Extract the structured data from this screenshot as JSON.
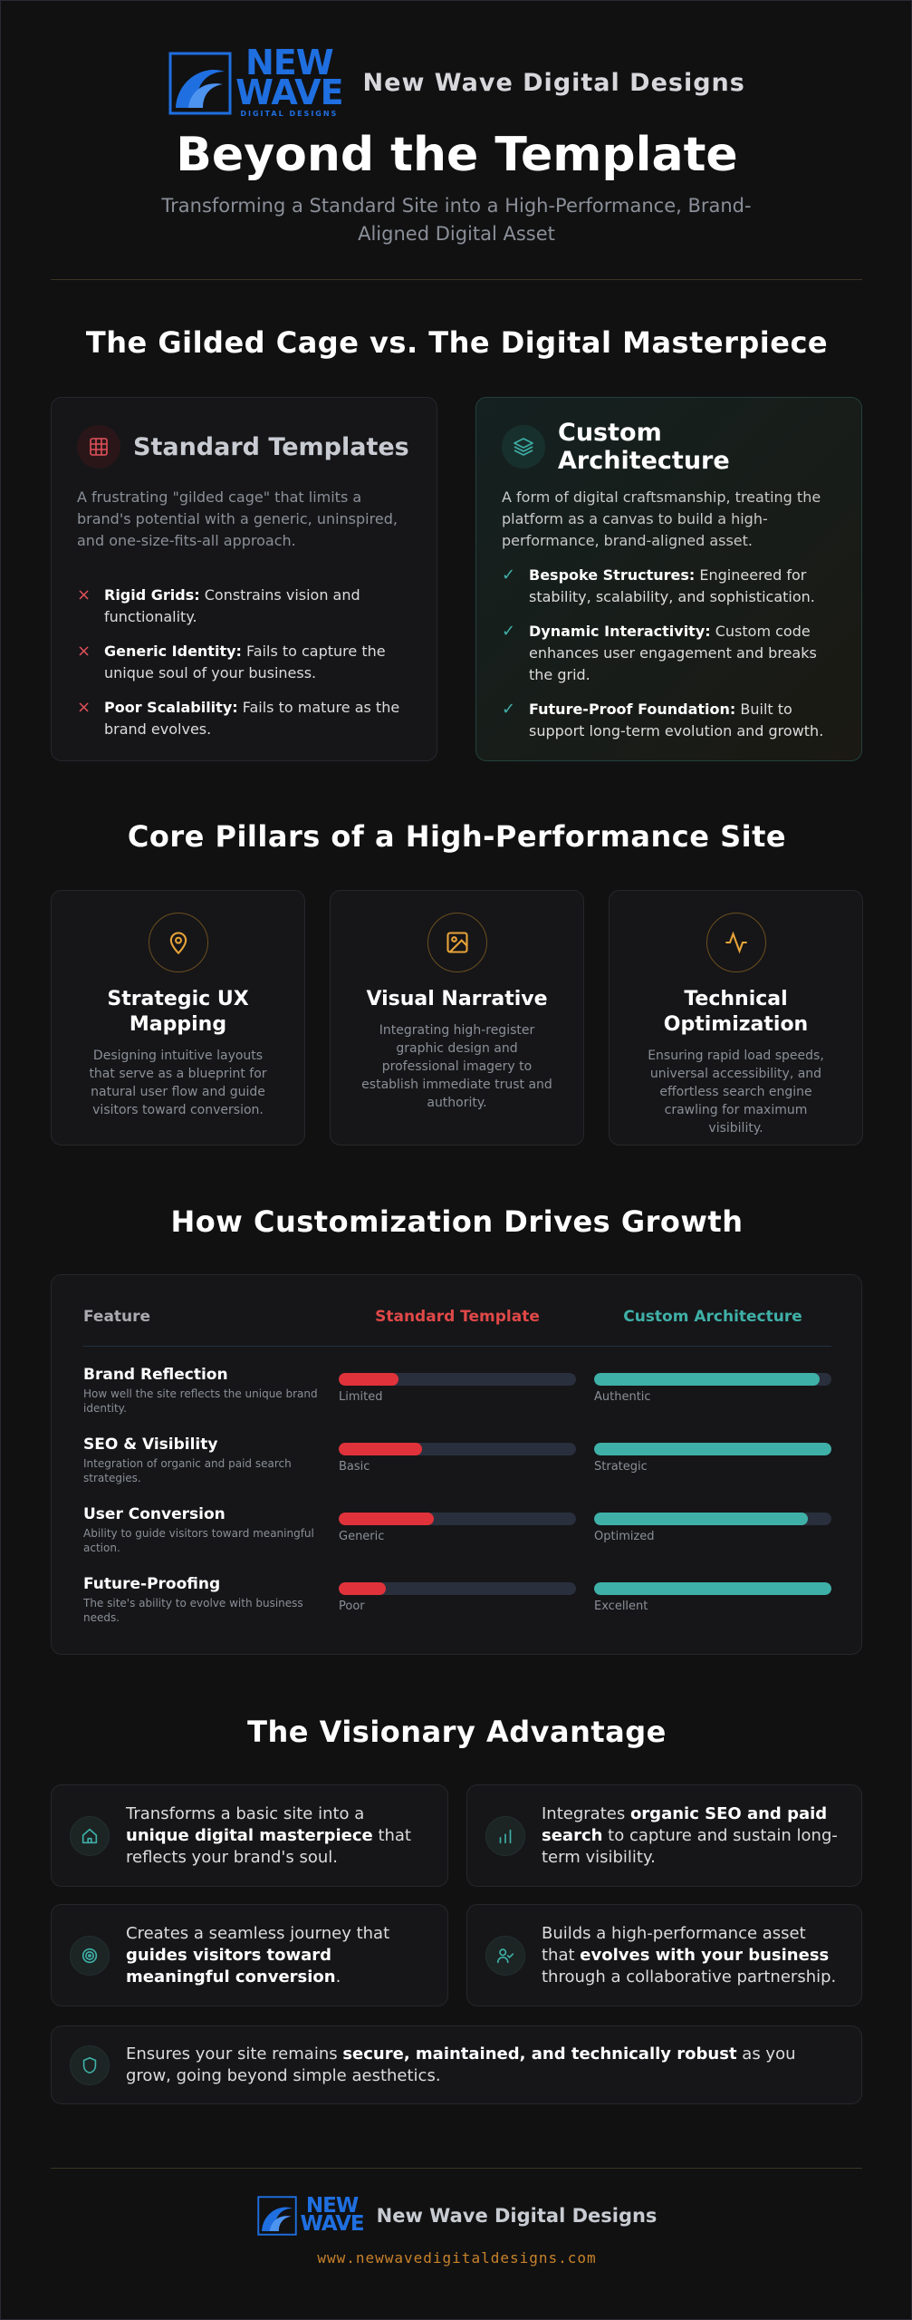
{
  "header": {
    "logo_top": "NEW",
    "logo_bottom": "WAVE",
    "logo_tag": "DIGITAL DESIGNS",
    "brand": "New Wave Digital Designs",
    "title": "Beyond the Template",
    "subtitle": "Transforming a Standard Site into a High-Performance, Brand-Aligned Digital Asset"
  },
  "comparison": {
    "title": "The Gilded Cage vs. The Digital Masterpiece",
    "standard": {
      "title": "Standard Templates",
      "description": "A frustrating \"gilded cage\" that limits a brand's potential with a generic, uninspired, and one-size-fits-all approach.",
      "points": [
        {
          "label": "Rigid Grids:",
          "text": " Constrains vision and functionality."
        },
        {
          "label": "Generic Identity:",
          "text": " Fails to capture the unique soul of your business."
        },
        {
          "label": "Poor Scalability:",
          "text": " Fails to mature as the brand evolves."
        }
      ]
    },
    "custom": {
      "title": "Custom Architecture",
      "description": "A form of digital craftsmanship, treating the platform as a canvas to build a high-performance, brand-aligned asset.",
      "points": [
        {
          "label": "Bespoke Structures:",
          "text": " Engineered for stability, scalability, and sophistication."
        },
        {
          "label": "Dynamic Interactivity:",
          "text": " Custom code enhances user engagement and breaks the grid."
        },
        {
          "label": "Future-Proof Foundation:",
          "text": " Built to support long-term evolution and growth."
        }
      ]
    }
  },
  "pillars": {
    "title": "Core Pillars of a High-Performance Site",
    "items": [
      {
        "title": "Strategic UX Mapping",
        "text": "Designing intuitive layouts that serve as a blueprint for natural user flow and guide visitors toward conversion."
      },
      {
        "title": "Visual Narrative",
        "text": "Integrating high-register graphic design and professional imagery to establish immediate trust and authority."
      },
      {
        "title": "Technical Optimization",
        "text": "Ensuring rapid load speeds, universal accessibility, and effortless search engine crawling for maximum visibility."
      }
    ]
  },
  "growth": {
    "title": "How Customization Drives Growth",
    "headers": [
      "Feature",
      "Standard Template",
      "Custom Architecture"
    ],
    "rows": [
      {
        "feature": "Brand Reflection",
        "description": "How well the site reflects the unique brand identity.",
        "standard": {
          "value": 25,
          "label": "Limited"
        },
        "custom": {
          "value": 95,
          "label": "Authentic"
        }
      },
      {
        "feature": "SEO & Visibility",
        "description": "Integration of organic and paid search strategies.",
        "standard": {
          "value": 35,
          "label": "Basic"
        },
        "custom": {
          "value": 100,
          "label": "Strategic"
        }
      },
      {
        "feature": "User Conversion",
        "description": "Ability to guide visitors toward meaningful action.",
        "standard": {
          "value": 40,
          "label": "Generic"
        },
        "custom": {
          "value": 90,
          "label": "Optimized"
        }
      },
      {
        "feature": "Future-Proofing",
        "description": "The site's ability to evolve with business needs.",
        "standard": {
          "value": 20,
          "label": "Poor"
        },
        "custom": {
          "value": 100,
          "label": "Excellent"
        }
      }
    ]
  },
  "advantages": {
    "title": "The Visionary Advantage",
    "items": [
      {
        "before": "Transforms a basic site into a ",
        "bold": "unique digital masterpiece",
        "after": " that reflects your brand's soul."
      },
      {
        "before": "Integrates ",
        "bold": "organic SEO and paid search",
        "after": " to capture and sustain long-term visibility."
      },
      {
        "before": "Creates a seamless journey that ",
        "bold": "guides visitors toward meaningful conversion",
        "after": "."
      },
      {
        "before": "Builds a high-performance asset that ",
        "bold": "evolves with your business",
        "after": " through a collaborative partnership."
      },
      {
        "before": "Ensures your site remains ",
        "bold": "secure, maintained, and technically robust",
        "after": " as you grow, going beyond simple aesthetics."
      }
    ]
  },
  "footer": {
    "brand": "New Wave Digital Designs",
    "url": "www.newwavedigitaldesigns.com"
  }
}
